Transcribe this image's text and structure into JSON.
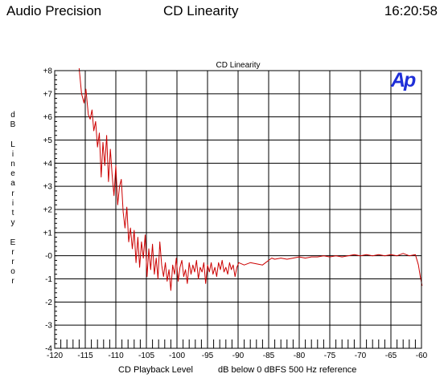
{
  "header": {
    "app_name": "Audio Precision",
    "title": "CD Linearity",
    "time": "16:20:58"
  },
  "logo_text": "Ap",
  "colors": {
    "trace": "#cc0000",
    "grid": "#000000",
    "logo": "#1f2fd8",
    "background": "#ffffff"
  },
  "chart_data": {
    "type": "line",
    "title": "CD Linearity",
    "xlabel": "CD Playback Level",
    "xlabel_reference": "dB below 0 dBFS 500 Hz reference",
    "ylabel": "dB Linearity Error",
    "xlim": [
      -120,
      -60
    ],
    "ylim": [
      -4,
      8
    ],
    "grid": true,
    "x_ticks": [
      "-120",
      "-115",
      "-110",
      "-105",
      "-100",
      "-95",
      "-90",
      "-85",
      "-80",
      "-75",
      "-70",
      "-65",
      "-60"
    ],
    "y_ticks": [
      "+8",
      "+7",
      "+6",
      "+5",
      "+4",
      "+3",
      "+2",
      "+1",
      "-0",
      "-1",
      "-2",
      "-3",
      "-4"
    ],
    "series": [
      {
        "color": "#cc0000",
        "x": [
          -116.0,
          -115.6,
          -115.2,
          -114.9,
          -114.5,
          -114.2,
          -113.9,
          -113.6,
          -113.3,
          -113.0,
          -112.7,
          -112.4,
          -112.1,
          -111.8,
          -111.5,
          -111.2,
          -110.9,
          -110.6,
          -110.3,
          -110.0,
          -109.7,
          -109.4,
          -109.1,
          -108.8,
          -108.5,
          -108.2,
          -107.9,
          -107.6,
          -107.3,
          -107.0,
          -106.7,
          -106.4,
          -106.1,
          -105.8,
          -105.5,
          -105.2,
          -104.9,
          -104.6,
          -104.3,
          -104.0,
          -103.7,
          -103.4,
          -103.1,
          -102.8,
          -102.5,
          -102.2,
          -101.9,
          -101.6,
          -101.3,
          -101.0,
          -100.7,
          -100.4,
          -100.1,
          -99.8,
          -99.5,
          -99.2,
          -98.9,
          -98.6,
          -98.3,
          -98.0,
          -97.7,
          -97.4,
          -97.1,
          -96.8,
          -96.5,
          -96.2,
          -95.9,
          -95.6,
          -95.3,
          -95.0,
          -94.7,
          -94.4,
          -94.1,
          -93.8,
          -93.5,
          -93.2,
          -92.9,
          -92.6,
          -92.3,
          -92.0,
          -91.7,
          -91.4,
          -91.1,
          -90.8,
          -90.5,
          -90.2,
          -89.9,
          -89.0,
          -88.0,
          -87.0,
          -86.0,
          -85.5,
          -85.0,
          -84.5,
          -84.0,
          -83.0,
          -82.0,
          -81.0,
          -80.0,
          -79.0,
          -78.0,
          -77.0,
          -76.0,
          -75.0,
          -74.0,
          -73.0,
          -72.0,
          -71.0,
          -70.0,
          -69.0,
          -68.0,
          -67.0,
          -66.0,
          -65.0,
          -64.0,
          -63.0,
          -62.0,
          -61.0,
          -60.5,
          -60.2,
          -59.9
        ],
        "y": [
          8.1,
          7.0,
          6.6,
          7.2,
          6.1,
          5.9,
          6.3,
          5.4,
          5.8,
          4.7,
          5.3,
          3.4,
          4.9,
          3.9,
          5.2,
          3.2,
          4.6,
          3.5,
          2.6,
          3.9,
          2.2,
          3.0,
          3.3,
          1.9,
          1.2,
          2.1,
          0.6,
          1.2,
          0.3,
          1.1,
          -0.3,
          0.8,
          -0.5,
          0.6,
          -0.1,
          0.9,
          -0.9,
          0.3,
          -0.6,
          0.5,
          -0.8,
          -0.1,
          -1.0,
          0.6,
          -0.4,
          -0.9,
          -0.3,
          -1.1,
          -0.6,
          -1.5,
          -0.4,
          -0.8,
          -0.1,
          -1.1,
          -0.5,
          -0.2,
          -0.9,
          -0.6,
          -1.2,
          -0.3,
          -0.8,
          -0.4,
          -0.7,
          -0.2,
          -1.0,
          -0.5,
          -0.7,
          -0.3,
          -1.2,
          -0.4,
          -0.7,
          -0.3,
          -0.8,
          -0.5,
          -0.9,
          -0.3,
          -0.6,
          -0.2,
          -0.7,
          -0.5,
          -0.8,
          -0.3,
          -0.6,
          -0.4,
          -0.9,
          -0.5,
          -0.3,
          -0.4,
          -0.3,
          -0.35,
          -0.4,
          -0.3,
          -0.2,
          -0.1,
          -0.15,
          -0.1,
          -0.15,
          -0.1,
          -0.05,
          -0.1,
          -0.05,
          -0.05,
          0.0,
          -0.05,
          0.0,
          -0.05,
          0.0,
          0.05,
          0.0,
          0.05,
          0.0,
          0.05,
          0.0,
          0.05,
          0.0,
          0.1,
          0.0,
          0.05,
          -0.4,
          -0.9,
          -1.3
        ]
      }
    ]
  }
}
